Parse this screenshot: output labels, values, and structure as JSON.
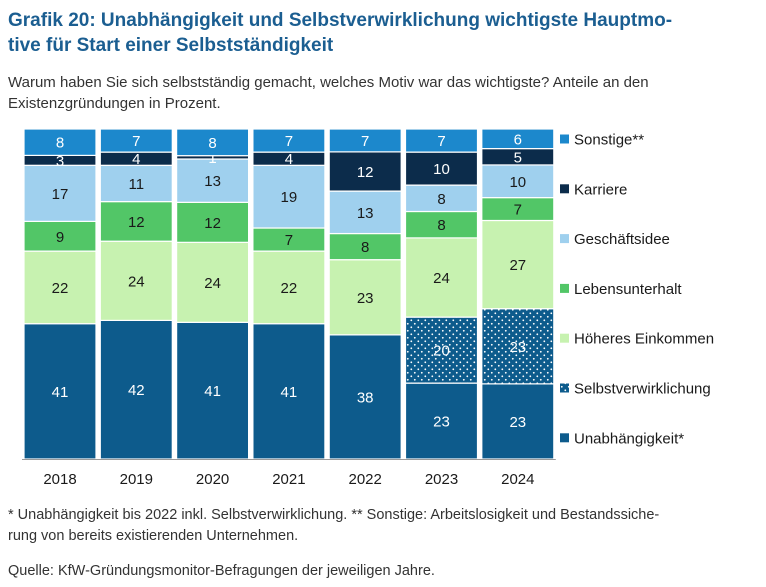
{
  "title": "Grafik 20: Unabhängigkeit und Selbstverwirklichung wichtigste Hauptmo-tive für Start einer Selbstständigkeit",
  "title_lines": [
    "Grafik 20: Unabhängigkeit und Selbstverwirklichung wichtigste Hauptmo-",
    "tive für Start einer Selbstständigkeit"
  ],
  "subtitle": "Warum haben Sie sich selbstständig gemacht, welches Motiv war das wichtigste? Anteile an den Existenzgründungen in Prozent.",
  "footnote": "* Unabhängigkeit bis 2022 inkl. Selbstverwirklichung. ** Sonstige: Arbeitslosigkeit und Bestandssiche-rung von bereits existierenden Unternehmen.",
  "footnote_lines": [
    "* Unabhängigkeit bis 2022 inkl. Selbstverwirklichung. ** Sonstige: Arbeitslosigkeit und Bestandssiche-",
    "rung von bereits existierenden Unternehmen."
  ],
  "source": "Quelle: KfW-Gründungsmonitor-Befragungen der jeweiligen Jahre.",
  "chart_data": {
    "type": "bar",
    "stacked": true,
    "normalized": true,
    "categories": [
      "2018",
      "2019",
      "2020",
      "2021",
      "2022",
      "2023",
      "2024"
    ],
    "legend_position": "right",
    "series": [
      {
        "name": "Unabhängigkeit*",
        "color": "#0d5b8c",
        "values": [
          41,
          42,
          41,
          41,
          38,
          23,
          23
        ]
      },
      {
        "name": "Selbstverwirklichung",
        "color": "#0d5b8c",
        "pattern": "dots",
        "values": [
          null,
          null,
          null,
          null,
          null,
          20,
          23
        ]
      },
      {
        "name": "Höheres Einkommen",
        "color": "#c7f2b0",
        "values": [
          22,
          24,
          24,
          22,
          23,
          24,
          27
        ]
      },
      {
        "name": "Lebensunterhalt",
        "color": "#52c667",
        "values": [
          9,
          12,
          12,
          7,
          8,
          8,
          7
        ]
      },
      {
        "name": "Geschäftsidee",
        "color": "#9fd0ee",
        "values": [
          17,
          11,
          13,
          19,
          13,
          8,
          10
        ]
      },
      {
        "name": "Karriere",
        "color": "#0c2c4b",
        "values": [
          3,
          4,
          1,
          4,
          12,
          10,
          5
        ]
      },
      {
        "name": "Sonstige**",
        "color": "#1c88cc",
        "values": [
          8,
          7,
          8,
          7,
          7,
          7,
          6
        ]
      }
    ]
  }
}
